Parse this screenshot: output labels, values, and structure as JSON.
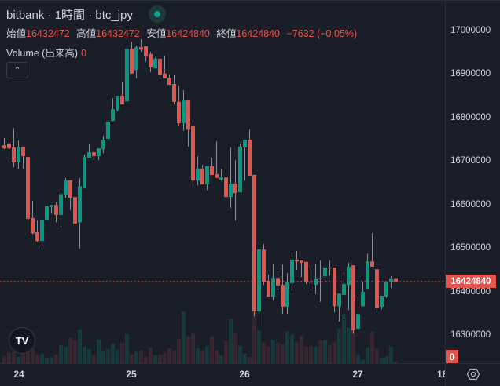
{
  "header": {
    "title": "bitbank · 1時間 · btc_jpy",
    "market_status": "open",
    "ohlc": [
      {
        "label": "始値",
        "value": "16432472"
      },
      {
        "label": "高値",
        "value": "16432472"
      },
      {
        "label": "安値",
        "value": "16424840"
      },
      {
        "label": "終値",
        "value": "16424840"
      }
    ],
    "change": "−7632 (−0.05%)",
    "volume_label": "Volume (出来高)",
    "volume_value": "0",
    "collapse_icon": "chevron-up-icon"
  },
  "colors": {
    "up": "#089981",
    "down": "#e0564f",
    "background": "#1a1e29",
    "volume_up": "#133a3d",
    "volume_down": "#3a242d"
  },
  "price_axis": {
    "ticks": [
      "17000000",
      "16900000",
      "16800000",
      "16700000",
      "16600000",
      "16500000",
      "16400000",
      "16300000"
    ],
    "last_price": "16424840",
    "volume_last": "0"
  },
  "time_axis": {
    "ticks": [
      "24",
      "25",
      "26",
      "27",
      "18:"
    ]
  },
  "logo_text": "TV",
  "chart_data": {
    "type": "candlestick",
    "symbol": "btc_jpy",
    "interval": "1時間",
    "ylim": [
      16250000,
      17050000
    ],
    "ohlc": [
      [
        16738000,
        16755000,
        16729000,
        16731000
      ],
      [
        16742000,
        16747000,
        16729000,
        16731000
      ],
      [
        16733000,
        16778000,
        16688000,
        16699000
      ],
      [
        16699000,
        16749000,
        16684000,
        16735000
      ],
      [
        16735000,
        16735000,
        16684000,
        16713000
      ],
      [
        16711000,
        16711000,
        16567000,
        16569000
      ],
      [
        16571000,
        16610000,
        16533000,
        16536000
      ],
      [
        16538000,
        16565000,
        16516000,
        16518000
      ],
      [
        16518000,
        16567000,
        16506000,
        16567000
      ],
      [
        16567000,
        16598000,
        16567000,
        16598000
      ],
      [
        16596000,
        16601000,
        16581000,
        16601000
      ],
      [
        16601000,
        16607000,
        16561000,
        16578000
      ],
      [
        16578000,
        16630000,
        16551000,
        16626000
      ],
      [
        16625000,
        16663000,
        16617000,
        16657000
      ],
      [
        16657000,
        16657000,
        16589000,
        16617000
      ],
      [
        16619000,
        16625000,
        16558000,
        16558000
      ],
      [
        16561000,
        16663000,
        16500000,
        16644000
      ],
      [
        16639000,
        16717000,
        16639000,
        16711000
      ],
      [
        16709000,
        16740000,
        16709000,
        16722000
      ],
      [
        16722000,
        16740000,
        16704000,
        16713000
      ],
      [
        16713000,
        16731000,
        16704000,
        16731000
      ],
      [
        16729000,
        16760000,
        16720000,
        16751000
      ],
      [
        16753000,
        16796000,
        16753000,
        16792000
      ],
      [
        16794000,
        16846000,
        16794000,
        16821000
      ],
      [
        16819000,
        16852000,
        16816000,
        16852000
      ],
      [
        16852000,
        16884000,
        16832000,
        16832000
      ],
      [
        16839000,
        16976000,
        16839000,
        16960000
      ],
      [
        16960000,
        16976000,
        16903000,
        16903000
      ],
      [
        16911000,
        16967000,
        16892000,
        16964000
      ],
      [
        16964000,
        16982000,
        16953000,
        16958000
      ],
      [
        16966000,
        16966000,
        16930000,
        16942000
      ],
      [
        16948000,
        16953000,
        16906000,
        16917000
      ],
      [
        16915000,
        16940000,
        16915000,
        16937000
      ],
      [
        16937000,
        16937000,
        16890000,
        16899000
      ],
      [
        16903000,
        16944000,
        16892000,
        16892000
      ],
      [
        16893000,
        16901000,
        16877000,
        16877000
      ],
      [
        16879000,
        16899000,
        16832000,
        16838000
      ],
      [
        16838000,
        16875000,
        16783000,
        16789000
      ],
      [
        16789000,
        16865000,
        16771000,
        16841000
      ],
      [
        16841000,
        16841000,
        16735000,
        16774000
      ],
      [
        16783000,
        16787000,
        16644000,
        16657000
      ],
      [
        16657000,
        16713000,
        16646000,
        16684000
      ],
      [
        16684000,
        16693000,
        16648000,
        16648000
      ],
      [
        16648000,
        16690000,
        16635000,
        16690000
      ],
      [
        16690000,
        16709000,
        16670000,
        16670000
      ],
      [
        16672000,
        16747000,
        16663000,
        16663000
      ],
      [
        16659000,
        16684000,
        16657000,
        16664000
      ],
      [
        16664000,
        16675000,
        16619000,
        16619000
      ],
      [
        16619000,
        16733000,
        16594000,
        16650000
      ],
      [
        16650000,
        16704000,
        16565000,
        16628000
      ],
      [
        16630000,
        16742000,
        16630000,
        16735000
      ],
      [
        16733000,
        16751000,
        16657000,
        16751000
      ],
      [
        16751000,
        16774000,
        16668000,
        16668000
      ],
      [
        16670000,
        16670000,
        16345000,
        16356000
      ],
      [
        16356000,
        16498000,
        16322000,
        16498000
      ],
      [
        16498000,
        16511000,
        16417000,
        16424000
      ],
      [
        16426000,
        16441000,
        16390000,
        16390000
      ],
      [
        16390000,
        16466000,
        16381000,
        16433000
      ],
      [
        16433000,
        16450000,
        16406000,
        16415000
      ],
      [
        16417000,
        16464000,
        16350000,
        16367000
      ],
      [
        16367000,
        16444000,
        16350000,
        16423000
      ],
      [
        16421000,
        16493000,
        16403000,
        16475000
      ],
      [
        16475000,
        16495000,
        16451000,
        16471000
      ],
      [
        16473000,
        16473000,
        16435000,
        16468000
      ],
      [
        16470000,
        16470000,
        16419000,
        16423000
      ],
      [
        16424000,
        16462000,
        16403000,
        16423000
      ],
      [
        16417000,
        16466000,
        16396000,
        16432000
      ],
      [
        16432000,
        16473000,
        16378000,
        16430000
      ],
      [
        16437000,
        16462000,
        16433000,
        16457000
      ],
      [
        16457000,
        16473000,
        16439000,
        16455000
      ],
      [
        16457000,
        16457000,
        16354000,
        16368000
      ],
      [
        16368000,
        16397000,
        16333000,
        16397000
      ],
      [
        16394000,
        16446000,
        16338000,
        16419000
      ],
      [
        16417000,
        16468000,
        16359000,
        16459000
      ],
      [
        16462000,
        16462000,
        16305000,
        16313000
      ],
      [
        16316000,
        16390000,
        16316000,
        16350000
      ],
      [
        16368000,
        16424000,
        16368000,
        16401000
      ],
      [
        16408000,
        16489000,
        16408000,
        16471000
      ],
      [
        16471000,
        16536000,
        16459000,
        16459000
      ],
      [
        16453000,
        16453000,
        16352000,
        16365000
      ],
      [
        16367000,
        16392000,
        16361000,
        16392000
      ],
      [
        16390000,
        16424000,
        16387000,
        16424000
      ],
      [
        16424000,
        16437000,
        16410000,
        16432000
      ],
      [
        16432472,
        16432472,
        16424840,
        16424840
      ]
    ],
    "volume_relative": [
      28,
      40,
      43,
      25,
      40,
      55,
      55,
      34,
      37,
      22,
      22,
      34,
      70,
      64,
      97,
      88,
      130,
      64,
      55,
      31,
      91,
      46,
      55,
      76,
      52,
      79,
      112,
      34,
      43,
      49,
      25,
      61,
      31,
      34,
      40,
      58,
      49,
      94,
      196,
      103,
      115,
      58,
      49,
      67,
      103,
      49,
      31,
      85,
      169,
      118,
      67,
      37,
      25,
      200,
      124,
      79,
      64,
      88,
      79,
      73,
      121,
      109,
      79,
      106,
      64,
      64,
      64,
      88,
      88,
      70,
      79,
      133,
      190,
      136,
      130,
      34,
      13,
      61,
      121,
      55,
      22,
      25,
      64,
      7
    ]
  }
}
